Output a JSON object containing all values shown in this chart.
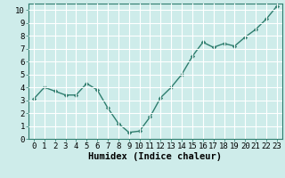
{
  "x": [
    0,
    1,
    2,
    3,
    4,
    5,
    6,
    7,
    8,
    9,
    10,
    11,
    12,
    13,
    14,
    15,
    16,
    17,
    18,
    19,
    20,
    21,
    22,
    23
  ],
  "y": [
    3.1,
    4.0,
    3.7,
    3.4,
    3.4,
    4.3,
    3.8,
    2.4,
    1.2,
    0.5,
    0.6,
    1.7,
    3.2,
    4.0,
    5.0,
    6.4,
    7.5,
    7.1,
    7.4,
    7.2,
    7.9,
    8.5,
    9.3,
    10.3
  ],
  "line_color": "#2e7d6e",
  "marker": "D",
  "marker_size": 2.2,
  "background_color": "#ceecea",
  "grid_color": "#ffffff",
  "grid_minor_color": "#e8f8f6",
  "xlabel": "Humidex (Indice chaleur)",
  "xlabel_fontsize": 7.5,
  "xlim": [
    -0.5,
    23.5
  ],
  "ylim": [
    0,
    10.5
  ],
  "yticks": [
    0,
    1,
    2,
    3,
    4,
    5,
    6,
    7,
    8,
    9,
    10
  ],
  "xticks": [
    0,
    1,
    2,
    3,
    4,
    5,
    6,
    7,
    8,
    9,
    10,
    11,
    12,
    13,
    14,
    15,
    16,
    17,
    18,
    19,
    20,
    21,
    22,
    23
  ],
  "tick_fontsize": 6.5,
  "axis_color": "#2e7d6e",
  "spine_color": "#2e7d6e",
  "linewidth": 1.0
}
